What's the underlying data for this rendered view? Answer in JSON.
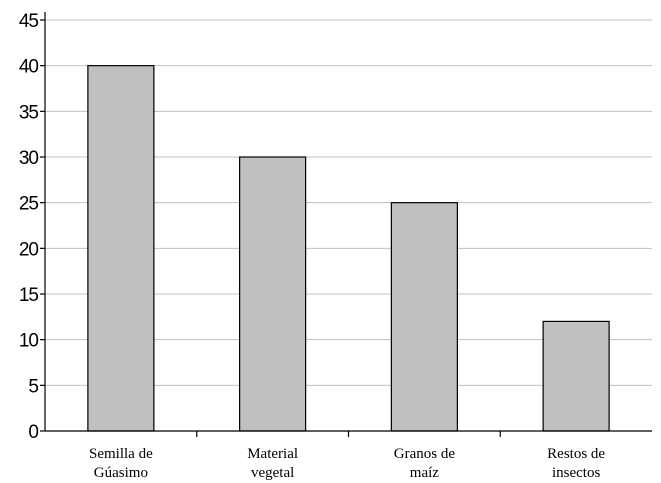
{
  "chart_data": {
    "type": "bar",
    "categories": [
      [
        "Semilla de",
        "Gúasimo"
      ],
      [
        "Material",
        "vegetal"
      ],
      [
        "Granos de",
        "maíz"
      ],
      [
        "Restos de",
        "insectos"
      ]
    ],
    "values": [
      40,
      30,
      25,
      12
    ],
    "ylim": [
      0,
      45
    ],
    "yticks": [
      "0",
      "5",
      "10",
      "15",
      "20",
      "25",
      "30",
      "35",
      "40",
      "45"
    ],
    "grid": true,
    "bar_color": "#c0c0c0",
    "grid_color": "#c0c0c0"
  }
}
